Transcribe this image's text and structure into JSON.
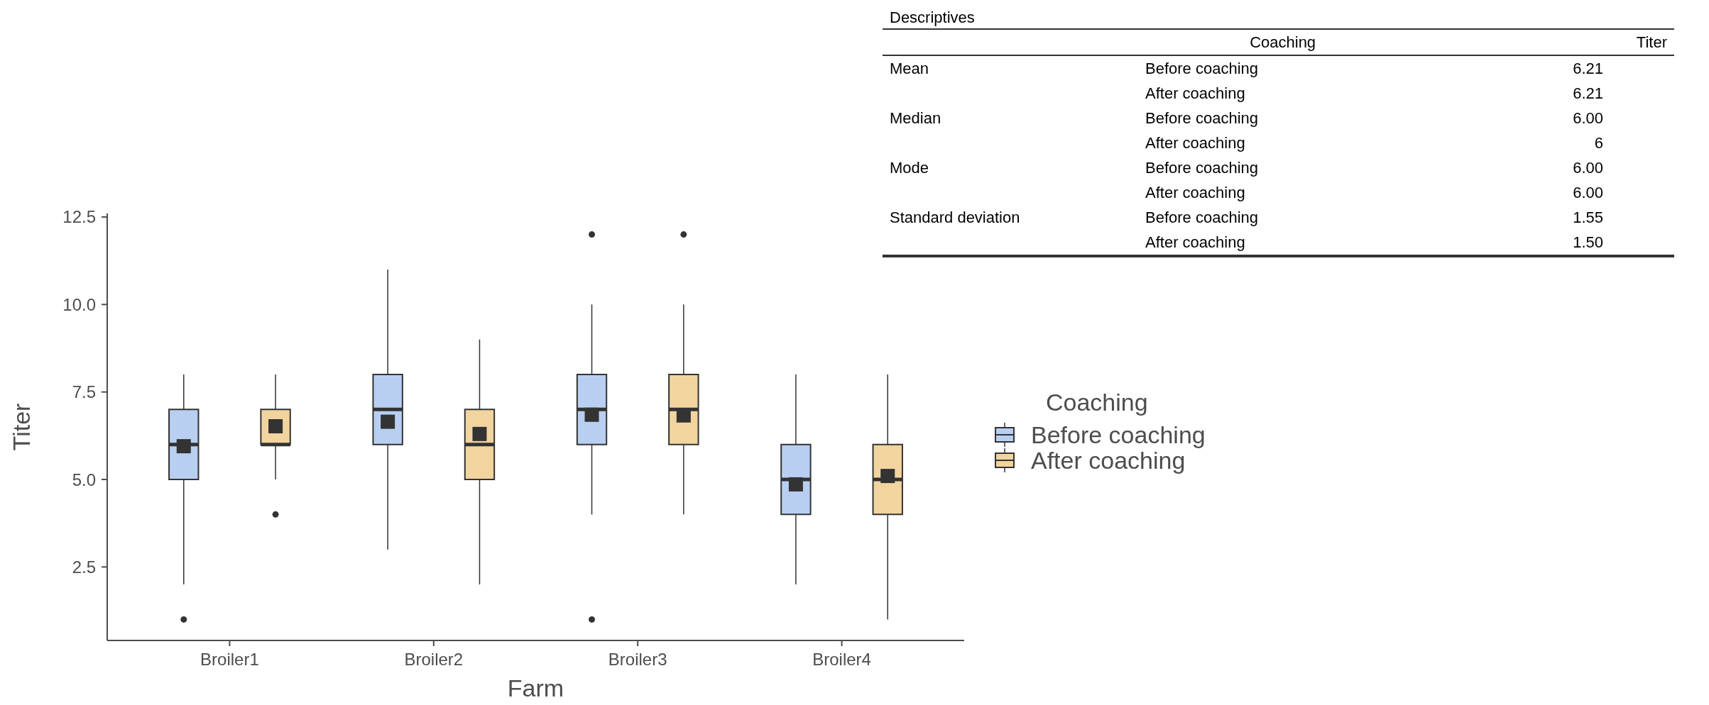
{
  "chart_data": [
    {
      "type": "box",
      "categories": [
        "Broiler1",
        "Broiler2",
        "Broiler3",
        "Broiler4"
      ],
      "xlabel": "Farm",
      "ylabel": "Titer",
      "ylim": [
        0.4,
        12.6
      ],
      "yticks": [
        2.5,
        {
          "value": 5,
          "label": "5.0"
        },
        7.5,
        {
          "value": 10,
          "label": "10.0"
        },
        12.5
      ],
      "legend": "right",
      "legend_title": "Coaching",
      "marker": "square",
      "series": [
        {
          "name": "Before coaching",
          "color": "#b8cff2",
          "boxes": [
            {
              "low": 2,
              "q1": 5,
              "median": 6,
              "q3": 7,
              "high": 8,
              "mean": 5.95,
              "outliers": [
                1
              ]
            },
            {
              "low": 3,
              "q1": 6,
              "median": 7,
              "q3": 8,
              "high": 11,
              "mean": 6.65
            },
            {
              "low": 4,
              "q1": 6,
              "median": 7,
              "q3": 8,
              "high": 10,
              "mean": 6.85,
              "outliers": [
                12,
                1
              ]
            },
            {
              "low": 2,
              "q1": 4,
              "median": 5,
              "q3": 6,
              "high": 8,
              "mean": 4.86
            }
          ]
        },
        {
          "name": "After coaching",
          "color": "#f2d49e",
          "boxes": [
            {
              "low": 5,
              "q1": 6,
              "median": 6,
              "q3": 7,
              "high": 8,
              "mean": 6.52,
              "outliers": [
                4
              ]
            },
            {
              "low": 2,
              "q1": 5,
              "median": 6,
              "q3": 7,
              "high": 9,
              "mean": 6.3
            },
            {
              "low": 4,
              "q1": 6,
              "median": 7,
              "q3": 8,
              "high": 10,
              "mean": 6.83,
              "outliers": [
                12
              ]
            },
            {
              "low": 1,
              "q1": 4,
              "median": 5,
              "q3": 6,
              "high": 8,
              "mean": 5.1
            }
          ]
        }
      ]
    },
    {
      "type": "other",
      "title": "Descriptives",
      "categories": [
        null,
        "Coaching",
        "Titer"
      ],
      "y_categories": [
        "Mean",
        null,
        "Median",
        null,
        "Mode",
        null,
        "Standard deviation",
        null
      ],
      "cell_labels": [
        [
          "Before coaching",
          "6.21"
        ],
        [
          "After coaching",
          "6.21"
        ],
        [
          "Before coaching",
          "6.00"
        ],
        [
          "After coaching",
          "6"
        ],
        [
          "Before coaching",
          "6.00"
        ],
        [
          "After coaching",
          "6.00"
        ],
        [
          "Before coaching",
          "1.55"
        ],
        [
          "After coaching",
          "1.50"
        ]
      ]
    }
  ]
}
